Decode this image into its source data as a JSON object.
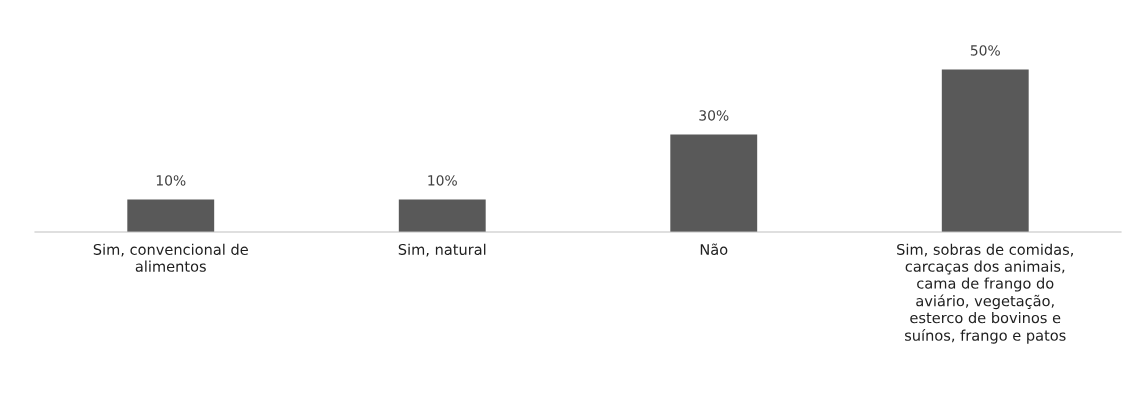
{
  "chart_data": {
    "type": "bar",
    "categories": [
      "Sim, convencional de alimentos",
      "Sim, natural",
      "Não",
      "Sim, sobras de comidas, carcaças dos animais, cama de frango do aviário, vegetação, esterco de bovinos e suínos, frango e patos"
    ],
    "values": [
      10,
      10,
      30,
      50
    ],
    "value_labels": [
      "10%",
      "10%",
      "30%",
      "50%"
    ],
    "color": "#595959"
  }
}
